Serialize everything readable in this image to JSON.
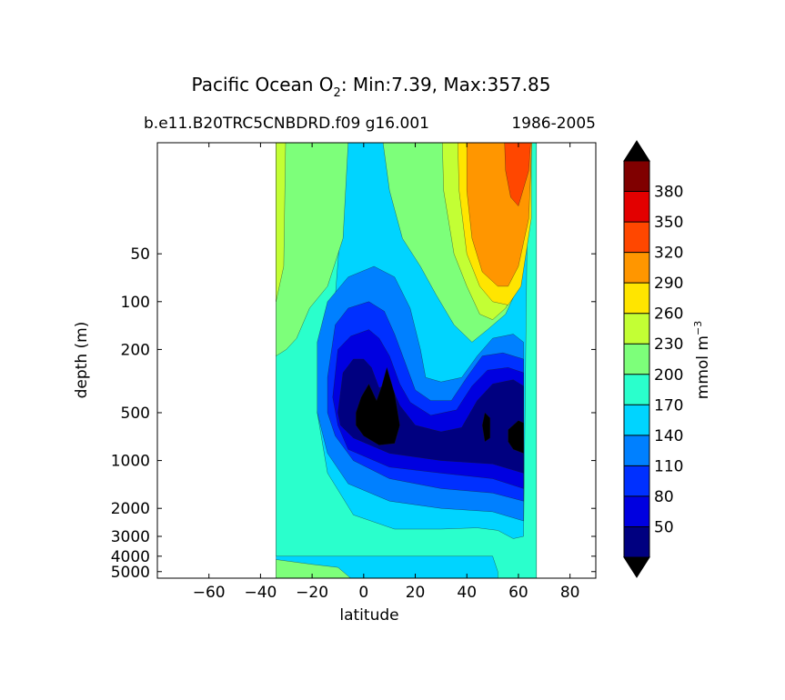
{
  "chart_data": {
    "type": "contour",
    "title_main": "Pacific Ocean O",
    "title_sub": "2",
    "title_rest": ": Min:7.39, Max:357.85",
    "subtitle_left": "b.e11.B20TRC5CNBDRD.f09 g16.001",
    "subtitle_right": "1986-2005",
    "xlabel": "latitude",
    "ylabel": "depth (m)",
    "xlim": [
      -80,
      90
    ],
    "xticks": [
      -60,
      -40,
      -20,
      0,
      20,
      40,
      60,
      80
    ],
    "xtick_labels": [
      "−60",
      "−40",
      "−20",
      "0",
      "20",
      "40",
      "60",
      "80"
    ],
    "yscale": "log",
    "ylim_depth": [
      5500,
      10
    ],
    "yticks": [
      50,
      100,
      200,
      500,
      1000,
      2000,
      3000,
      4000,
      5000
    ],
    "ytick_labels": [
      "50",
      "100",
      "200",
      "500",
      "1000",
      "2000",
      "3000",
      "4000",
      "5000"
    ],
    "data_extent_lat": [
      -34,
      67
    ],
    "colorbar": {
      "label": "mmol m",
      "label_sup": "−3",
      "levels": [
        20,
        50,
        80,
        110,
        140,
        170,
        200,
        230,
        260,
        290,
        320,
        350,
        380,
        410
      ],
      "tick_values": [
        50,
        80,
        110,
        140,
        170,
        200,
        230,
        260,
        290,
        320,
        350,
        380
      ],
      "tick_labels": [
        "50",
        "80",
        "110",
        "140",
        "170",
        "200",
        "230",
        "260",
        "290",
        "320",
        "350",
        "380"
      ],
      "colors": [
        "#000080",
        "#0000e0",
        "#0030ff",
        "#0080ff",
        "#00d4ff",
        "#2affcc",
        "#7dff7a",
        "#c3ff34",
        "#ffe500",
        "#ff9600",
        "#ff4700",
        "#e30000",
        "#800000"
      ],
      "extend": "both",
      "under_color": "#000000",
      "over_color": "#000000"
    },
    "regions": [
      {
        "level": 140,
        "color": "#00d4ff",
        "outline": [
          [
            -34,
            5
          ],
          [
            67,
            5
          ],
          [
            67,
            5500
          ],
          [
            -34,
            5500
          ]
        ]
      },
      {
        "level": 170,
        "color": "#2affcc",
        "outline": [
          [
            -34,
            5
          ],
          [
            -5,
            5
          ],
          [
            -12,
            150
          ],
          [
            -18,
            500
          ],
          [
            -14,
            1200
          ],
          [
            -4,
            2200
          ],
          [
            12,
            2700
          ],
          [
            30,
            2700
          ],
          [
            44,
            2650
          ],
          [
            52,
            2750
          ],
          [
            58,
            3100
          ],
          [
            62,
            3000
          ],
          [
            64,
            5
          ],
          [
            67,
            5
          ],
          [
            67,
            5500
          ],
          [
            52,
            5500
          ],
          [
            52,
            5000
          ],
          [
            52,
            5000
          ],
          [
            50,
            4000
          ],
          [
            -34,
            4000
          ]
        ]
      },
      {
        "level": 200,
        "color": "#7dff7a",
        "outline": [
          [
            -34,
            5
          ],
          [
            -5,
            5
          ],
          [
            -8,
            40
          ],
          [
            -14,
            80
          ],
          [
            -21,
            110
          ],
          [
            -26,
            170
          ],
          [
            -30,
            200
          ],
          [
            -34,
            220
          ]
        ]
      },
      {
        "level": 200,
        "color": "#7dff7a",
        "outline": [
          [
            -34,
            4200
          ],
          [
            -20,
            4500
          ],
          [
            -10,
            4700
          ],
          [
            -5,
            5500
          ],
          [
            -34,
            5500
          ]
        ]
      },
      {
        "level": 200,
        "color": "#7dff7a",
        "outline": [
          [
            -5,
            5
          ],
          [
            5,
            5
          ],
          [
            10,
            20
          ],
          [
            15,
            40
          ],
          [
            22,
            60
          ],
          [
            28,
            90
          ],
          [
            35,
            140
          ],
          [
            42,
            180
          ],
          [
            48,
            150
          ],
          [
            55,
            120
          ],
          [
            60,
            80
          ],
          [
            63,
            30
          ],
          [
            64,
            5
          ]
        ]
      },
      {
        "level": 230,
        "color": "#c3ff34",
        "outline": [
          [
            -34,
            5
          ],
          [
            -30,
            5
          ],
          [
            -31,
            60
          ],
          [
            -34,
            100
          ]
        ]
      },
      {
        "level": 230,
        "color": "#c3ff34",
        "outline": [
          [
            30,
            5
          ],
          [
            58,
            5
          ],
          [
            62,
            30
          ],
          [
            60,
            80
          ],
          [
            55,
            110
          ],
          [
            50,
            130
          ],
          [
            45,
            120
          ],
          [
            40,
            80
          ],
          [
            35,
            50
          ],
          [
            31,
            20
          ]
        ]
      },
      {
        "level": 260,
        "color": "#ffe500",
        "outline": [
          [
            36,
            5
          ],
          [
            65,
            5
          ],
          [
            65,
            30
          ],
          [
            61,
            80
          ],
          [
            56,
            105
          ],
          [
            50,
            100
          ],
          [
            45,
            80
          ],
          [
            40,
            50
          ],
          [
            37,
            20
          ]
        ]
      },
      {
        "level": 290,
        "color": "#ff9600",
        "outline": [
          [
            40,
            5
          ],
          [
            66,
            5
          ],
          [
            64,
            30
          ],
          [
            60,
            60
          ],
          [
            56,
            80
          ],
          [
            52,
            80
          ],
          [
            46,
            65
          ],
          [
            42,
            40
          ],
          [
            40,
            20
          ]
        ]
      },
      {
        "level": 320,
        "color": "#ff4700",
        "outline": [
          [
            54,
            5
          ],
          [
            66,
            5
          ],
          [
            64,
            15
          ],
          [
            60,
            25
          ],
          [
            57,
            22
          ],
          [
            55,
            15
          ]
        ]
      },
      {
        "level": 110,
        "color": "#0080ff",
        "outline": [
          [
            -18,
            180
          ],
          [
            -14,
            100
          ],
          [
            -6,
            70
          ],
          [
            4,
            60
          ],
          [
            12,
            70
          ],
          [
            18,
            110
          ],
          [
            22,
            200
          ],
          [
            24,
            300
          ],
          [
            30,
            320
          ],
          [
            38,
            300
          ],
          [
            44,
            220
          ],
          [
            50,
            170
          ],
          [
            58,
            160
          ],
          [
            62,
            180
          ],
          [
            62,
            2400
          ],
          [
            50,
            2100
          ],
          [
            30,
            2000
          ],
          [
            10,
            1800
          ],
          [
            -6,
            1400
          ],
          [
            -14,
            900
          ],
          [
            -18,
            500
          ]
        ]
      },
      {
        "level": 80,
        "color": "#0030ff",
        "outline": [
          [
            -14,
            300
          ],
          [
            -11,
            140
          ],
          [
            -6,
            110
          ],
          [
            2,
            100
          ],
          [
            8,
            115
          ],
          [
            12,
            160
          ],
          [
            16,
            240
          ],
          [
            20,
            360
          ],
          [
            26,
            420
          ],
          [
            34,
            420
          ],
          [
            40,
            300
          ],
          [
            46,
            220
          ],
          [
            54,
            210
          ],
          [
            62,
            230
          ],
          [
            62,
            1800
          ],
          [
            50,
            1600
          ],
          [
            30,
            1500
          ],
          [
            10,
            1300
          ],
          [
            -4,
            1000
          ],
          [
            -11,
            700
          ],
          [
            -14,
            500
          ]
        ]
      },
      {
        "level": 50,
        "color": "#0000e0",
        "outline": [
          [
            -12,
            400
          ],
          [
            -10,
            200
          ],
          [
            -5,
            165
          ],
          [
            2,
            150
          ],
          [
            6,
            170
          ],
          [
            10,
            220
          ],
          [
            14,
            330
          ],
          [
            18,
            430
          ],
          [
            26,
            520
          ],
          [
            36,
            480
          ],
          [
            42,
            340
          ],
          [
            48,
            270
          ],
          [
            56,
            260
          ],
          [
            62,
            280
          ],
          [
            62,
            1500
          ],
          [
            50,
            1300
          ],
          [
            30,
            1200
          ],
          [
            10,
            1100
          ],
          [
            -6,
            850
          ],
          [
            -10,
            600
          ]
        ]
      },
      {
        "level": 20,
        "color": "#000080",
        "outline": [
          [
            -10,
            500
          ],
          [
            -8,
            280
          ],
          [
            -4,
            230
          ],
          [
            0,
            230
          ],
          [
            3,
            260
          ],
          [
            6,
            350
          ],
          [
            10,
            320
          ],
          [
            14,
            450
          ],
          [
            20,
            600
          ],
          [
            30,
            660
          ],
          [
            38,
            620
          ],
          [
            44,
            420
          ],
          [
            50,
            330
          ],
          [
            58,
            310
          ],
          [
            62,
            340
          ],
          [
            62,
            1200
          ],
          [
            50,
            1050
          ],
          [
            30,
            1000
          ],
          [
            10,
            900
          ],
          [
            -4,
            720
          ],
          [
            -9,
            600
          ]
        ]
      },
      {
        "level": 0,
        "color": "#000000",
        "outline": [
          [
            -3,
            500
          ],
          [
            -1,
            400
          ],
          [
            2,
            330
          ],
          [
            5,
            420
          ],
          [
            7,
            340
          ],
          [
            9,
            260
          ],
          [
            12,
            380
          ],
          [
            14,
            600
          ],
          [
            12,
            780
          ],
          [
            6,
            800
          ],
          [
            0,
            700
          ],
          [
            -3,
            600
          ]
        ]
      },
      {
        "level": 0,
        "color": "#000000",
        "outline": [
          [
            46,
            600
          ],
          [
            47,
            500
          ],
          [
            49,
            540
          ],
          [
            49,
            720
          ],
          [
            47,
            760
          ]
        ]
      },
      {
        "level": 0,
        "color": "#000000",
        "outline": [
          [
            56,
            640
          ],
          [
            60,
            560
          ],
          [
            62,
            580
          ],
          [
            62,
            900
          ],
          [
            58,
            850
          ],
          [
            56,
            760
          ]
        ]
      }
    ]
  }
}
